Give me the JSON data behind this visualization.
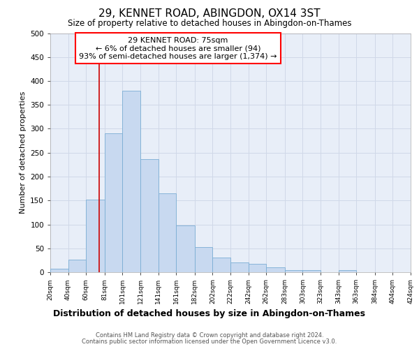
{
  "title1": "29, KENNET ROAD, ABINGDON, OX14 3ST",
  "title2": "Size of property relative to detached houses in Abingdon-on-Thames",
  "xlabel": "Distribution of detached houses by size in Abingdon-on-Thames",
  "ylabel": "Number of detached properties",
  "bins": [
    20,
    40,
    60,
    81,
    101,
    121,
    141,
    161,
    182,
    202,
    222,
    242,
    262,
    283,
    303,
    323,
    343,
    363,
    384,
    404,
    424
  ],
  "hist_values": [
    7,
    26,
    152,
    291,
    380,
    237,
    165,
    98,
    53,
    30,
    20,
    17,
    10,
    5,
    4,
    0,
    4,
    0,
    0,
    0
  ],
  "bin_labels": [
    "20sqm",
    "40sqm",
    "60sqm",
    "81sqm",
    "101sqm",
    "121sqm",
    "141sqm",
    "161sqm",
    "182sqm",
    "202sqm",
    "222sqm",
    "242sqm",
    "262sqm",
    "283sqm",
    "303sqm",
    "323sqm",
    "343sqm",
    "363sqm",
    "384sqm",
    "404sqm",
    "424sqm"
  ],
  "bar_color": "#c8d9f0",
  "bar_edge_color": "#7aadd4",
  "grid_color": "#d0d8e8",
  "background_color": "#e8eef8",
  "vline_x": 75,
  "vline_color": "#cc0000",
  "annotation_line1": "29 KENNET ROAD: 75sqm",
  "annotation_line2": "← 6% of detached houses are smaller (94)",
  "annotation_line3": "93% of semi-detached houses are larger (1,374) →",
  "annotation_facecolor": "white",
  "annotation_edgecolor": "red",
  "footer1": "Contains HM Land Registry data © Crown copyright and database right 2024.",
  "footer2": "Contains public sector information licensed under the Open Government Licence v3.0.",
  "ylim": [
    0,
    500
  ],
  "yticks": [
    0,
    50,
    100,
    150,
    200,
    250,
    300,
    350,
    400,
    450,
    500
  ]
}
